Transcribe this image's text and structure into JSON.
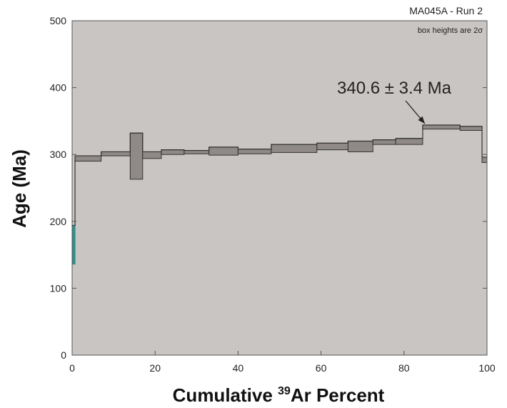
{
  "chart_data": {
    "type": "step-spectrum",
    "title": "MA045A - Run 2",
    "subtitle_main": "box heights are 2",
    "subtitle_symbol": "σ",
    "xlabel_pre": "Cumulative ",
    "xlabel_sup": "39",
    "xlabel_post": "Ar Percent",
    "ylabel": "Age (Ma)",
    "xlim": [
      0,
      100
    ],
    "ylim": [
      0,
      500
    ],
    "x_ticks": [
      "0",
      "20",
      "40",
      "60",
      "80",
      "100"
    ],
    "y_ticks": [
      "0",
      "100",
      "200",
      "300",
      "400",
      "500"
    ],
    "grid": false,
    "annotation": {
      "text": "340.6 ± 3.4 Ma",
      "points_to_x": 84.5,
      "points_to_y": 344
    },
    "steps": [
      {
        "x0": 0.0,
        "x1": 0.7,
        "ylow": 136,
        "yhigh": 194,
        "color": "#2f8f8a"
      },
      {
        "x0": 0.7,
        "x1": 7.0,
        "ylow": 290,
        "yhigh": 298
      },
      {
        "x0": 7.0,
        "x1": 14.0,
        "ylow": 298,
        "yhigh": 304
      },
      {
        "x0": 14.0,
        "x1": 17.0,
        "ylow": 263,
        "yhigh": 332
      },
      {
        "x0": 17.0,
        "x1": 21.5,
        "ylow": 294,
        "yhigh": 304
      },
      {
        "x0": 21.5,
        "x1": 27.0,
        "ylow": 300,
        "yhigh": 307
      },
      {
        "x0": 27.0,
        "x1": 33.0,
        "ylow": 301,
        "yhigh": 306
      },
      {
        "x0": 33.0,
        "x1": 40.0,
        "ylow": 299,
        "yhigh": 311
      },
      {
        "x0": 40.0,
        "x1": 48.0,
        "ylow": 301,
        "yhigh": 308
      },
      {
        "x0": 48.0,
        "x1": 59.0,
        "ylow": 303,
        "yhigh": 315
      },
      {
        "x0": 59.0,
        "x1": 66.5,
        "ylow": 307,
        "yhigh": 317
      },
      {
        "x0": 66.5,
        "x1": 72.5,
        "ylow": 304,
        "yhigh": 320
      },
      {
        "x0": 72.5,
        "x1": 78.0,
        "ylow": 315,
        "yhigh": 322
      },
      {
        "x0": 78.0,
        "x1": 84.5,
        "ylow": 315,
        "yhigh": 324
      },
      {
        "x0": 84.5,
        "x1": 93.5,
        "ylow": 338,
        "yhigh": 344
      },
      {
        "x0": 93.5,
        "x1": 98.8,
        "ylow": 336,
        "yhigh": 342
      },
      {
        "x0": 98.8,
        "x1": 100.0,
        "ylow": 288,
        "yhigh": 296
      }
    ],
    "colors": {
      "plot_bg": "#c9c5c2",
      "box_fill": "#8f8a87",
      "box_stroke": "#333333",
      "frame": "#555555"
    }
  }
}
